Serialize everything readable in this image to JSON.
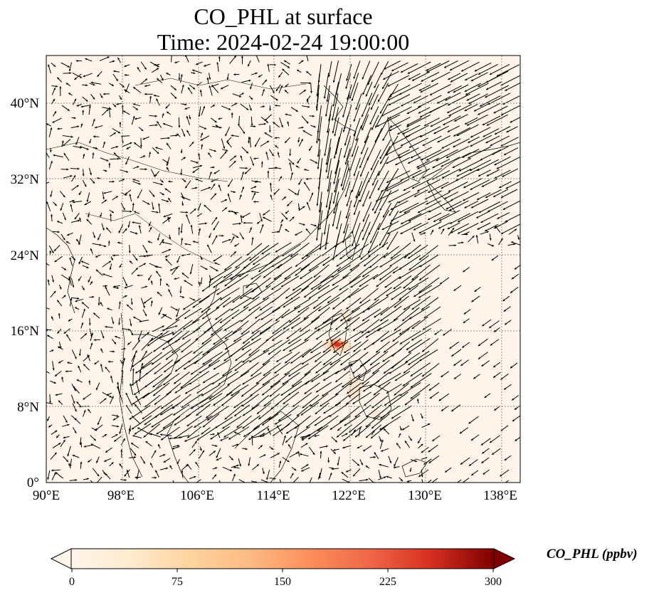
{
  "title": {
    "line1": "CO_PHL at surface",
    "line2": "Time: 2024-02-24 19:00:00"
  },
  "map": {
    "projection": "PlateCarree",
    "lon_range": [
      90,
      140
    ],
    "lat_range": [
      0,
      45
    ],
    "x_ticks": [
      "90°E",
      "98°E",
      "106°E",
      "114°E",
      "122°E",
      "130°E",
      "138°E"
    ],
    "y_ticks": [
      "0°",
      "8°N",
      "16°N",
      "24°N",
      "32°N",
      "40°N"
    ],
    "gridlines": "dotted",
    "background_color": "#fff5eb",
    "coastline_color": "#000000",
    "vector_color": "#000000",
    "hotspot_location": "Luzon, Philippines"
  },
  "colorbar": {
    "label": "CO_PHL (ppbv)",
    "ticks": [
      "0",
      "75",
      "150",
      "225",
      "300"
    ],
    "range": [
      0,
      300
    ],
    "colormap": "OrRd",
    "extend": "both",
    "colors": [
      "#fff5eb",
      "#fdd49e",
      "#fdbb84",
      "#fc8d59",
      "#ef6548",
      "#d7301f",
      "#b30000",
      "#7f0000"
    ]
  }
}
